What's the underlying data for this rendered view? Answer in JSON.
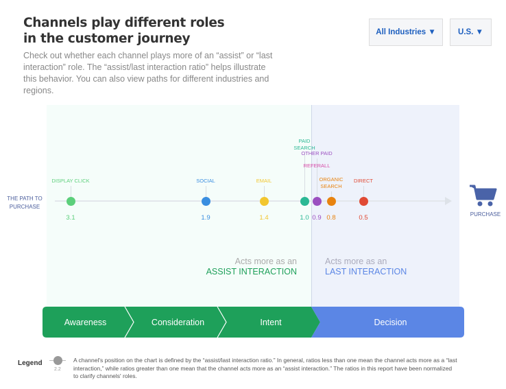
{
  "header": {
    "title": "Channels play different roles in the customer journey",
    "description": "Check out whether each channel plays more of an “assist” or “last interaction” role. The “assist/last interaction ratio” helps illustrate this behavior. You can also view paths for different industries and regions.",
    "industry_dropdown": "All Industries ▼",
    "region_dropdown": "U.S. ▼"
  },
  "chart": {
    "left_label": "THE PATH TO PURCHASE",
    "right_label": "PURCHASE",
    "cart_icon": "shopping-cart-icon",
    "channels": [
      {
        "name": "DISPLAY CLICK",
        "ratio": "3.1",
        "color": "#5ccf7b"
      },
      {
        "name": "SOCIAL",
        "ratio": "1.9",
        "color": "#3a8ee0"
      },
      {
        "name": "EMAIL",
        "ratio": "1.4",
        "color": "#f2c62f"
      },
      {
        "name": "PAID SEARCH",
        "ratio": "1.0",
        "color": "#2bb894"
      },
      {
        "name": "OTHER PAID",
        "ratio": "0.9",
        "color": "#9b4fc0"
      },
      {
        "name": "REFERALL",
        "ratio": "",
        "color": "#d84aa8"
      },
      {
        "name": "ORGANIC SEARCH",
        "ratio": "0.8",
        "color": "#e8830f"
      },
      {
        "name": "DIRECT",
        "ratio": "0.5",
        "color": "#e04a34"
      }
    ],
    "assist_zone": {
      "line1": "Acts more as an",
      "line2": "ASSIST INTERACTION"
    },
    "last_zone": {
      "line1": "Acts more as an",
      "line2": "LAST INTERACTION"
    }
  },
  "stages": [
    "Awareness",
    "Consideration",
    "Intent",
    "Decision"
  ],
  "legend": {
    "title": "Legend",
    "sample_value": "2.2",
    "text": "A channel's position on the chart is defined by the “assist/last interaction ratio.” In general, ratios less than one mean the channel acts more as a “last interaction,” while ratios greater than one mean that the channel acts more as an “assist interaction.” The ratios in this report have been normalized to clarify channels' roles."
  }
}
